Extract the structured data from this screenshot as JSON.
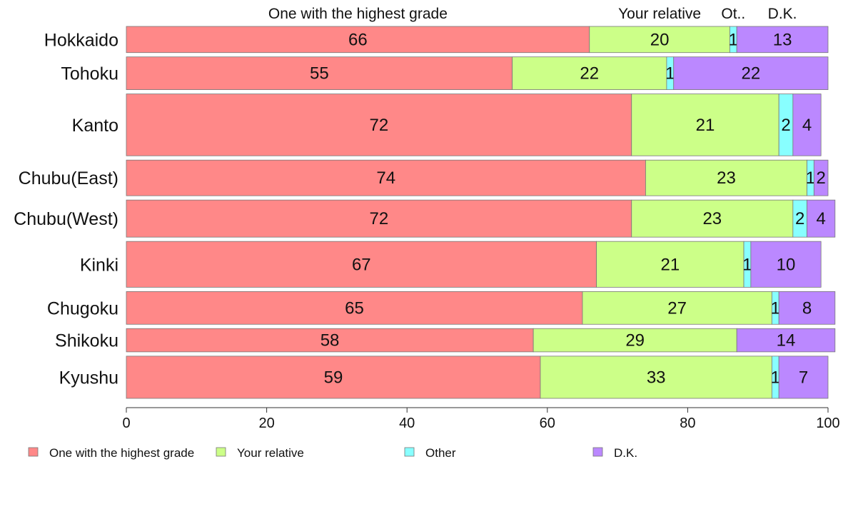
{
  "chart_data": {
    "type": "bar",
    "orientation": "horizontal",
    "stacked": true,
    "proportional_bar_heights": true,
    "title": "",
    "xlabel": "",
    "ylabel": "",
    "xlim": [
      0,
      100
    ],
    "x_ticks": [
      "0",
      "20",
      "40",
      "60",
      "80",
      "100"
    ],
    "grid": false,
    "legend_position": "bottom",
    "top_labels": [
      "One with the highest grade",
      "Your relative",
      "Ot..",
      "D.K."
    ],
    "categories": [
      "Hokkaido",
      "Tohoku",
      "Kanto",
      "Chubu(East)",
      "Chubu(West)",
      "Kinki",
      "Chugoku",
      "Shikoku",
      "Kyushu"
    ],
    "series": [
      {
        "name": "One with the highest grade",
        "color": "#ff8888",
        "values": [
          66,
          55,
          72,
          74,
          72,
          67,
          65,
          58,
          59
        ]
      },
      {
        "name": "Your relative",
        "color": "#ccff88",
        "values": [
          20,
          22,
          21,
          23,
          23,
          21,
          27,
          29,
          33
        ]
      },
      {
        "name": "Other",
        "color": "#88ffff",
        "values": [
          1,
          1,
          2,
          1,
          2,
          1,
          1,
          0,
          1
        ]
      },
      {
        "name": "D.K.",
        "color": "#bb88ff",
        "values": [
          13,
          22,
          4,
          2,
          4,
          10,
          8,
          14,
          7
        ]
      }
    ],
    "segment_labels": [
      [
        "66",
        "20",
        "1",
        "13"
      ],
      [
        "55",
        "22",
        "1",
        "22"
      ],
      [
        "72",
        "21",
        "2",
        "4"
      ],
      [
        "74",
        "23",
        "1",
        "2"
      ],
      [
        "72",
        "23",
        "2",
        "4"
      ],
      [
        "67",
        "21",
        "1",
        "10"
      ],
      [
        "65",
        "27",
        "1",
        "8"
      ],
      [
        "58",
        "29",
        "",
        "14"
      ],
      [
        "59",
        "33",
        "1",
        "7"
      ]
    ]
  }
}
